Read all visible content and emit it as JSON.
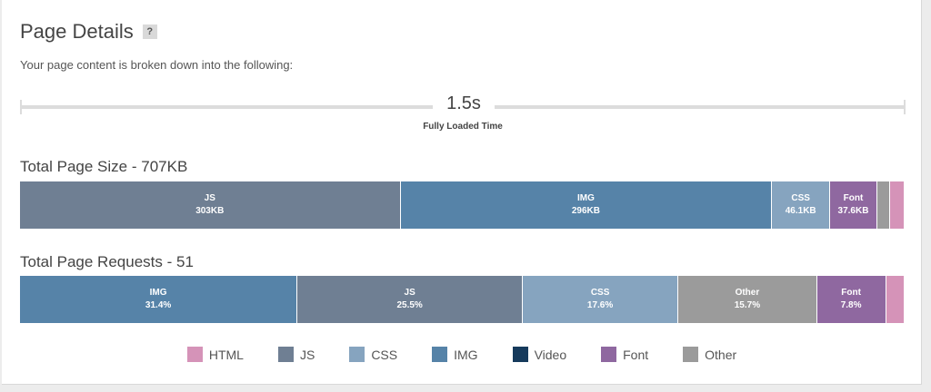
{
  "header": {
    "title": "Page Details",
    "help_label": "?"
  },
  "subtitle": "Your page content is broken down into the following:",
  "timeline": {
    "value": "1.5s",
    "label": "Fully Loaded Time"
  },
  "colors": {
    "HTML": "#d593b8",
    "JS": "#6f7f93",
    "CSS": "#86a4bf",
    "IMG": "#5683a8",
    "Video": "#163a5c",
    "Font": "#8f68a0",
    "Other": "#9b9b9b"
  },
  "chart_data": [
    {
      "type": "bar",
      "orientation": "horizontal-stacked",
      "title": "Total Page Size - 707KB",
      "segments": [
        {
          "category": "JS",
          "label": "JS",
          "value_label": "303KB",
          "value": 303
        },
        {
          "category": "IMG",
          "label": "IMG",
          "value_label": "296KB",
          "value": 296
        },
        {
          "category": "CSS",
          "label": "CSS",
          "value_label": "46.1KB",
          "value": 46.1
        },
        {
          "category": "Font",
          "label": "Font",
          "value_label": "37.6KB",
          "value": 37.6
        },
        {
          "category": "Other",
          "label": "",
          "value_label": "",
          "value": 10
        },
        {
          "category": "HTML",
          "label": "",
          "value_label": "",
          "value": 11
        }
      ]
    },
    {
      "type": "bar",
      "orientation": "horizontal-stacked",
      "title": "Total Page Requests - 51",
      "segments": [
        {
          "category": "IMG",
          "label": "IMG",
          "value_label": "31.4%",
          "value": 31.4
        },
        {
          "category": "JS",
          "label": "JS",
          "value_label": "25.5%",
          "value": 25.5
        },
        {
          "category": "CSS",
          "label": "CSS",
          "value_label": "17.6%",
          "value": 17.6
        },
        {
          "category": "Other",
          "label": "Other",
          "value_label": "15.7%",
          "value": 15.7
        },
        {
          "category": "Font",
          "label": "Font",
          "value_label": "7.8%",
          "value": 7.8
        },
        {
          "category": "HTML",
          "label": "",
          "value_label": "",
          "value": 2.0
        }
      ]
    }
  ],
  "legend": {
    "placement": "bottom-center",
    "items": [
      {
        "label": "HTML",
        "color": "#d593b8",
        "icon": "html-swatch"
      },
      {
        "label": "JS",
        "color": "#6f7f93",
        "icon": "js-swatch"
      },
      {
        "label": "CSS",
        "color": "#86a4bf",
        "icon": "css-swatch"
      },
      {
        "label": "IMG",
        "color": "#5683a8",
        "icon": "img-swatch"
      },
      {
        "label": "Video",
        "color": "#163a5c",
        "icon": "video-swatch"
      },
      {
        "label": "Font",
        "color": "#8f68a0",
        "icon": "font-swatch"
      },
      {
        "label": "Other",
        "color": "#9b9b9b",
        "icon": "other-swatch"
      }
    ]
  }
}
